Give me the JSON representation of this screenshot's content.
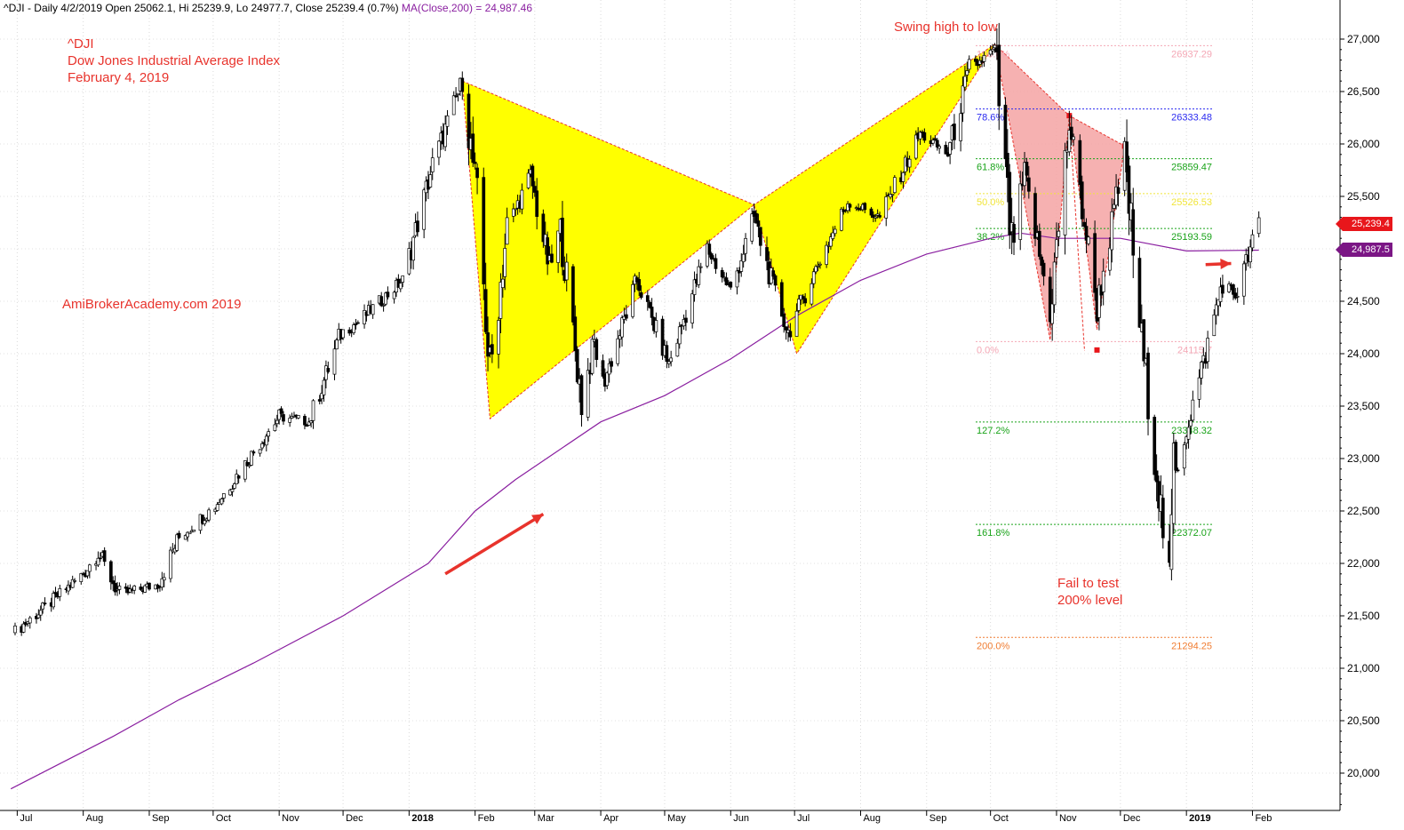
{
  "header": {
    "ohlc_text": "^DJI - Daily 4/2/2019 Open 25062.1, Hi 25239.9, Lo 24977.7, Close 25239.4 (0.7%) ",
    "ma_text": "MA(Close,200) = 24,987.46"
  },
  "annotations": {
    "ticker": "^DJI",
    "name": "Dow Jones Industrial Average Index",
    "date": "February 4, 2019",
    "watermark": "AmiBrokerAcademy.com  2019",
    "swing": "Swing high to low",
    "fail_line1": "Fail to test",
    "fail_line2": "200% level"
  },
  "price_tags": {
    "close": "25,239.4",
    "ma": "24,987.5",
    "close_color": "#e8161b",
    "ma_color": "#7b1685"
  },
  "chart_data": {
    "type": "candlestick",
    "y_ticks": [
      "27,000",
      "26,500",
      "26,000",
      "25,500",
      "25,000",
      "24,500",
      "24,000",
      "23,500",
      "23,000",
      "22,500",
      "22,000",
      "21,500",
      "21,000",
      "20,500",
      "20,000"
    ],
    "y_tick_values": [
      27000,
      26500,
      26000,
      25500,
      25000,
      24500,
      24000,
      23500,
      23000,
      22500,
      22000,
      21500,
      21000,
      20500,
      20000
    ],
    "ylim": [
      19800,
      27350
    ],
    "x_labels": [
      "Jul",
      "Aug",
      "Sep",
      "Oct",
      "Nov",
      "Dec",
      "2018",
      "Feb",
      "Mar",
      "Apr",
      "May",
      "Jun",
      "Jul",
      "Aug",
      "Sep",
      "Oct",
      "Nov",
      "Dec",
      "2019",
      "Feb"
    ],
    "x_label_bold": [
      "2018",
      "2019"
    ],
    "price_path": [
      [
        "2017-06-30",
        21350
      ],
      [
        "2017-07-14",
        21580
      ],
      [
        "2017-08-01",
        21900
      ],
      [
        "2017-08-08",
        22100
      ],
      [
        "2017-08-18",
        21700
      ],
      [
        "2017-09-05",
        21800
      ],
      [
        "2017-09-15",
        22250
      ],
      [
        "2017-10-02",
        22550
      ],
      [
        "2017-10-16",
        22950
      ],
      [
        "2017-11-01",
        23400
      ],
      [
        "2017-11-15",
        23350
      ],
      [
        "2017-11-30",
        24200
      ],
      [
        "2017-12-08",
        24300
      ],
      [
        "2017-12-29",
        24700
      ],
      [
        "2018-01-12",
        25800
      ],
      [
        "2018-01-26",
        26600
      ],
      [
        "2018-02-02",
        25500
      ],
      [
        "2018-02-08",
        23800
      ],
      [
        "2018-02-16",
        25200
      ],
      [
        "2018-02-27",
        25700
      ],
      [
        "2018-03-08",
        24800
      ],
      [
        "2018-03-13",
        25200
      ],
      [
        "2018-03-23",
        23550
      ],
      [
        "2018-03-29",
        24100
      ],
      [
        "2018-04-02",
        23700
      ],
      [
        "2018-04-18",
        24700
      ],
      [
        "2018-05-03",
        23900
      ],
      [
        "2018-05-21",
        25000
      ],
      [
        "2018-06-01",
        24600
      ],
      [
        "2018-06-12",
        25300
      ],
      [
        "2018-06-20",
        24700
      ],
      [
        "2018-06-28",
        24200
      ],
      [
        "2018-07-13",
        24900
      ],
      [
        "2018-07-26",
        25450
      ],
      [
        "2018-08-10",
        25300
      ],
      [
        "2018-08-29",
        26100
      ],
      [
        "2018-09-11",
        25900
      ],
      [
        "2018-09-21",
        26700
      ],
      [
        "2018-10-03",
        26900
      ],
      [
        "2018-10-11",
        25000
      ],
      [
        "2018-10-17",
        25700
      ],
      [
        "2018-10-29",
        24400
      ],
      [
        "2018-11-07",
        26200
      ],
      [
        "2018-11-20",
        24450
      ],
      [
        "2018-12-03",
        25900
      ],
      [
        "2018-12-10",
        24300
      ],
      [
        "2018-12-24",
        21800
      ],
      [
        "2018-12-26",
        22800
      ],
      [
        "2019-01-10",
        24000
      ],
      [
        "2019-01-18",
        24700
      ],
      [
        "2019-01-24",
        24550
      ],
      [
        "2019-02-04",
        25240
      ]
    ],
    "ma200_path": [
      [
        "2017-06-28",
        19850
      ],
      [
        "2017-08-15",
        20350
      ],
      [
        "2017-09-15",
        20700
      ],
      [
        "2017-10-20",
        21050
      ],
      [
        "2017-12-01",
        21500
      ],
      [
        "2018-01-10",
        22000
      ],
      [
        "2018-02-01",
        22500
      ],
      [
        "2018-02-20",
        22800
      ],
      [
        "2018-04-01",
        23350
      ],
      [
        "2018-05-01",
        23600
      ],
      [
        "2018-06-01",
        23950
      ],
      [
        "2018-07-01",
        24350
      ],
      [
        "2018-08-01",
        24700
      ],
      [
        "2018-09-01",
        24950
      ],
      [
        "2018-10-01",
        25100
      ],
      [
        "2018-10-15",
        25150
      ],
      [
        "2018-11-01",
        25100
      ],
      [
        "2018-12-01",
        25100
      ],
      [
        "2019-01-01",
        24980
      ],
      [
        "2019-02-04",
        24987.46
      ]
    ],
    "pattern_yellow": [
      [
        "2018-01-26",
        26600
      ],
      [
        "2018-02-08",
        23380
      ],
      [
        "2018-06-12",
        25420
      ],
      [
        "2018-07-02",
        24000
      ],
      [
        "2018-10-03",
        26951
      ]
    ],
    "pattern_pink": [
      [
        "2018-10-03",
        26951
      ],
      [
        "2018-10-29",
        24130
      ],
      [
        "2018-11-07",
        26270
      ],
      [
        "2018-11-20",
        24230
      ],
      [
        "2018-12-03",
        25980
      ]
    ],
    "fib_levels": [
      {
        "label": "100.0%",
        "value": "26937.29",
        "price": 26937.29,
        "color": "#f4a7b5"
      },
      {
        "label": "78.6%",
        "value": "26333.48",
        "price": 26333.48,
        "color": "#2a2af0"
      },
      {
        "label": "61.8%",
        "value": "25859.47",
        "price": 25859.47,
        "color": "#19a319"
      },
      {
        "label": "50.0%",
        "value": "25526.53",
        "price": 25526.53,
        "color": "#f1e53a"
      },
      {
        "label": "38.2%",
        "value": "25193.59",
        "price": 25193.59,
        "color": "#19a319"
      },
      {
        "label": "0.0%",
        "value": "24115.7",
        "price": 24115.7,
        "color": "#f4a7b5"
      },
      {
        "label": "127.2%",
        "value": "23348.32",
        "price": 23348.32,
        "color": "#19a319"
      },
      {
        "label": "161.8%",
        "value": "22372.07",
        "price": 22372.07,
        "color": "#19a319"
      },
      {
        "label": "200.0%",
        "value": "21294.25",
        "price": 21294.25,
        "color": "#f07d32"
      }
    ],
    "arrows": [
      {
        "from": [
          "2018-01-18",
          21900
        ],
        "to": [
          "2018-03-05",
          22470
        ]
      },
      {
        "from": [
          "2019-01-10",
          24850
        ],
        "to": [
          "2019-01-22",
          24860
        ]
      }
    ],
    "colors": {
      "ma": "#8a1fa0",
      "yellow": "#ffff00",
      "pink": "#f5a3a3",
      "text": "#e8332c"
    }
  }
}
